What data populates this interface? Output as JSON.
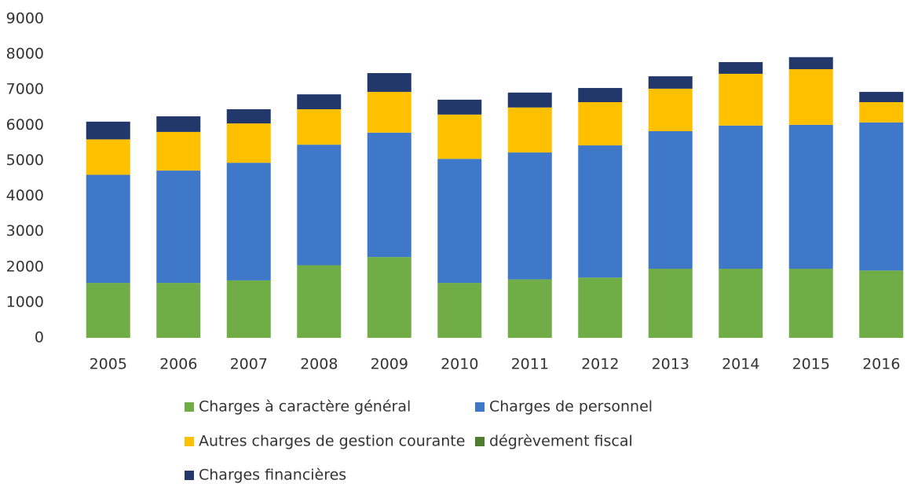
{
  "chart_data": {
    "type": "stacked_bar",
    "categories": [
      "2005",
      "2006",
      "2007",
      "2008",
      "2009",
      "2010",
      "2011",
      "2012",
      "2013",
      "2014",
      "2015",
      "2016"
    ],
    "series": [
      {
        "name": "Charges à caractère général",
        "color": "#70ad47",
        "values": [
          1550,
          1550,
          1620,
          2050,
          2280,
          1550,
          1650,
          1700,
          1950,
          1950,
          1950,
          1900
        ]
      },
      {
        "name": "Charges de personnel",
        "color": "#3f78c8",
        "values": [
          3050,
          3170,
          3320,
          3400,
          3510,
          3500,
          3580,
          3730,
          3880,
          4040,
          4060,
          4180
        ]
      },
      {
        "name": "Autres charges de gestion courante",
        "color": "#ffc000",
        "values": [
          1000,
          1090,
          1110,
          1000,
          1150,
          1250,
          1270,
          1220,
          1200,
          1460,
          1570,
          570
        ]
      },
      {
        "name": "dégrèvement fiscal",
        "color": "#4e7d2f",
        "values": [
          0,
          0,
          0,
          0,
          0,
          0,
          0,
          0,
          0,
          0,
          0,
          0
        ]
      },
      {
        "name": "Charges financières",
        "color": "#22386b",
        "values": [
          500,
          440,
          400,
          420,
          530,
          420,
          420,
          400,
          350,
          330,
          340,
          290
        ]
      }
    ],
    "ylim": [
      0,
      9000
    ],
    "yticks": [
      0,
      1000,
      2000,
      3000,
      4000,
      5000,
      6000,
      7000,
      8000,
      9000
    ],
    "grid": false
  }
}
